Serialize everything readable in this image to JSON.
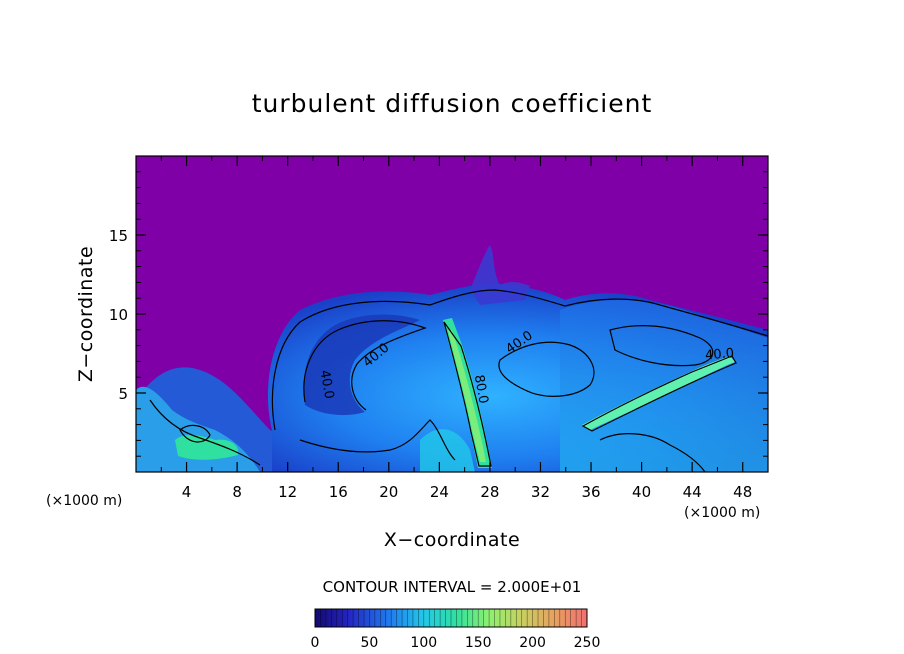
{
  "chart_data": {
    "type": "heatmap",
    "title": "turbulent diffusion coefficient",
    "xlabel": "X−coordinate",
    "ylabel": "Z−coordinate",
    "x_unit": "(×1000 m)",
    "x_unit_left": "(×1000 m)",
    "xlim": [
      0,
      50
    ],
    "ylim": [
      0,
      20
    ],
    "x_ticks": [
      4,
      8,
      12,
      16,
      20,
      24,
      28,
      32,
      36,
      40,
      44,
      48
    ],
    "y_ticks": [
      5,
      10,
      15
    ],
    "contour_interval_text": "CONTOUR INTERVAL = 2.000E+01",
    "colorbar": {
      "min": 0,
      "max": 250,
      "ticks": [
        0,
        50,
        100,
        150,
        200,
        250
      ],
      "colors": [
        "#1a0a8a",
        "#2b2bd6",
        "#1f7ff0",
        "#22c8e8",
        "#30e0a0",
        "#8ef070",
        "#c8d060",
        "#e8a060",
        "#f07070"
      ]
    },
    "background_color": "#8000a8",
    "contour_labels": [
      {
        "text": "40.0",
        "x": 14.8,
        "z": 5.5,
        "rotate": 80
      },
      {
        "text": "40.0",
        "x": 19.2,
        "z": 7.2,
        "rotate": -40
      },
      {
        "text": "80.0",
        "x": 27.0,
        "z": 5.2,
        "rotate": 80
      },
      {
        "text": "40.0",
        "x": 30.5,
        "z": 8.0,
        "rotate": -35
      },
      {
        "text": "40.0",
        "x": 46.2,
        "z": 7.2,
        "rotate": -5
      }
    ]
  }
}
